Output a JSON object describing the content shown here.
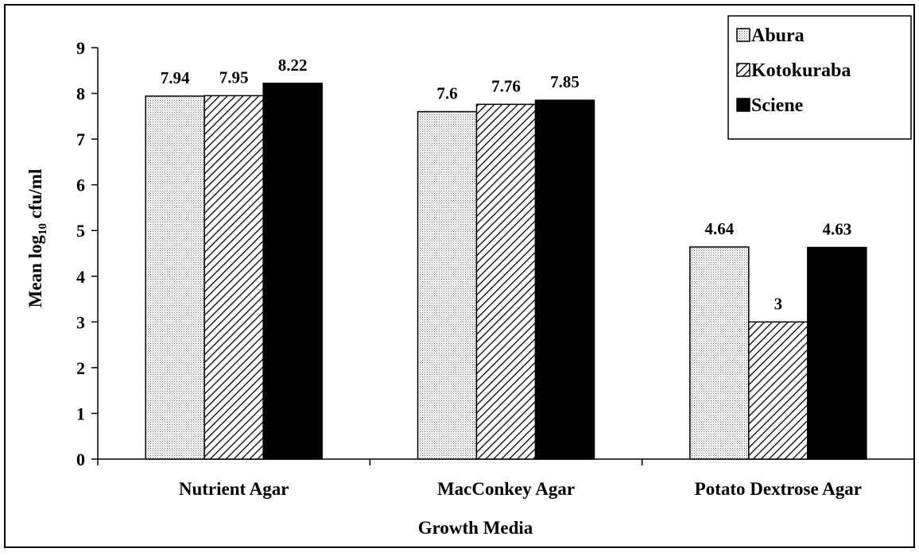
{
  "chart_data": {
    "type": "bar",
    "title": "",
    "xlabel": "Growth Media",
    "ylabel": {
      "prefix": "Mean log",
      "subscript": "10",
      "suffix": " cfu/ml"
    },
    "ylim": [
      0,
      9
    ],
    "yticks": [
      "0",
      "1",
      "2",
      "3",
      "4",
      "5",
      "6",
      "7",
      "8",
      "9"
    ],
    "grid": false,
    "legend_position": "top-right",
    "categories": [
      "Nutrient Agar",
      "MacConkey Agar",
      "Potato Dextrose Agar"
    ],
    "series": [
      {
        "name": "Abura",
        "values": [
          7.94,
          7.6,
          4.64
        ],
        "labels": [
          "7.94",
          "7.6",
          "4.64"
        ],
        "pattern": "dotted"
      },
      {
        "name": "Kotokuraba",
        "values": [
          7.95,
          7.76,
          3
        ],
        "labels": [
          "7.95",
          "7.76",
          "3"
        ],
        "pattern": "diagonal-hatch"
      },
      {
        "name": "Sciene",
        "values": [
          8.22,
          7.85,
          4.63
        ],
        "labels": [
          "8.22",
          "7.85",
          "4.63"
        ],
        "pattern": "solid-black"
      }
    ]
  }
}
